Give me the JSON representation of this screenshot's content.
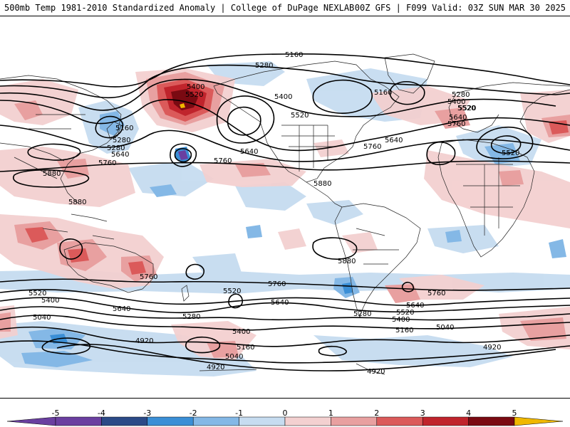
{
  "header": {
    "title_left": "500mb Temp 1981-2010 Standardized Anomaly | College of DuPage NEXLAB",
    "title_right": "00Z GFS | F099 Valid: 03Z SUN MAR 30 2025"
  },
  "contours": [
    {
      "id": "c1",
      "label": "5160"
    },
    {
      "id": "c2",
      "label": "5280"
    },
    {
      "id": "c3",
      "label": "5400"
    },
    {
      "id": "c4",
      "label": "5520"
    },
    {
      "id": "c5",
      "label": "5160"
    },
    {
      "id": "c6",
      "label": "5280"
    },
    {
      "id": "c7",
      "label": "5400"
    },
    {
      "id": "c8",
      "label": "5520"
    },
    {
      "id": "c9",
      "label": "5640"
    },
    {
      "id": "c10",
      "label": "5760"
    },
    {
      "id": "c11",
      "label": "5160"
    },
    {
      "id": "c12",
      "label": "5280"
    },
    {
      "id": "c13",
      "label": "5640"
    },
    {
      "id": "c14",
      "label": "5760"
    },
    {
      "id": "c15",
      "label": "5520"
    },
    {
      "id": "c16",
      "label": "5640"
    },
    {
      "id": "c17",
      "label": "5760"
    },
    {
      "id": "c18",
      "label": "5520"
    },
    {
      "id": "c19",
      "label": "5280"
    },
    {
      "id": "c20",
      "label": "5400"
    },
    {
      "id": "c21",
      "label": "5520"
    },
    {
      "id": "c22",
      "label": "5640"
    },
    {
      "id": "c23",
      "label": "5760"
    },
    {
      "id": "c24",
      "label": "5880"
    },
    {
      "id": "c25",
      "label": "5880"
    },
    {
      "id": "c26",
      "label": "5880"
    },
    {
      "id": "c27",
      "label": "5880"
    },
    {
      "id": "c28",
      "label": "5760"
    },
    {
      "id": "c29",
      "label": "5520"
    },
    {
      "id": "c30",
      "label": "5400"
    },
    {
      "id": "c31",
      "label": "5040"
    },
    {
      "id": "c32",
      "label": "4920"
    },
    {
      "id": "c33",
      "label": "5640"
    },
    {
      "id": "c34",
      "label": "5280"
    },
    {
      "id": "c35",
      "label": "5520"
    },
    {
      "id": "c36",
      "label": "5400"
    },
    {
      "id": "c37",
      "label": "5160"
    },
    {
      "id": "c38",
      "label": "5040"
    },
    {
      "id": "c39",
      "label": "4920"
    },
    {
      "id": "c40",
      "label": "5760"
    },
    {
      "id": "c41",
      "label": "5640"
    },
    {
      "id": "c42",
      "label": "5760"
    },
    {
      "id": "c43",
      "label": "5640"
    },
    {
      "id": "c44",
      "label": "5280"
    },
    {
      "id": "c45",
      "label": "5520"
    },
    {
      "id": "c46",
      "label": "5400"
    },
    {
      "id": "c47",
      "label": "5160"
    },
    {
      "id": "c48",
      "label": "5040"
    },
    {
      "id": "c49",
      "label": "4920"
    },
    {
      "id": "c50",
      "label": "4920"
    }
  ],
  "colorbar": {
    "ticks": [
      "-5",
      "-4",
      "-3",
      "-2",
      "-1",
      "0",
      "1",
      "2",
      "3",
      "4",
      "5"
    ],
    "colors": {
      "m5": "#6a3fa0",
      "m4": "#2b4a87",
      "m3": "#3b8fd6",
      "m2": "#84b8e6",
      "m1": "#c6dcf0",
      "p1": "#f3d0d0",
      "p2": "#e8a0a0",
      "p3": "#db5a5a",
      "p4": "#c0242c",
      "p5": "#7a0a12",
      "low_end": "#6a3fa0",
      "high_end": "#f0b800"
    }
  }
}
